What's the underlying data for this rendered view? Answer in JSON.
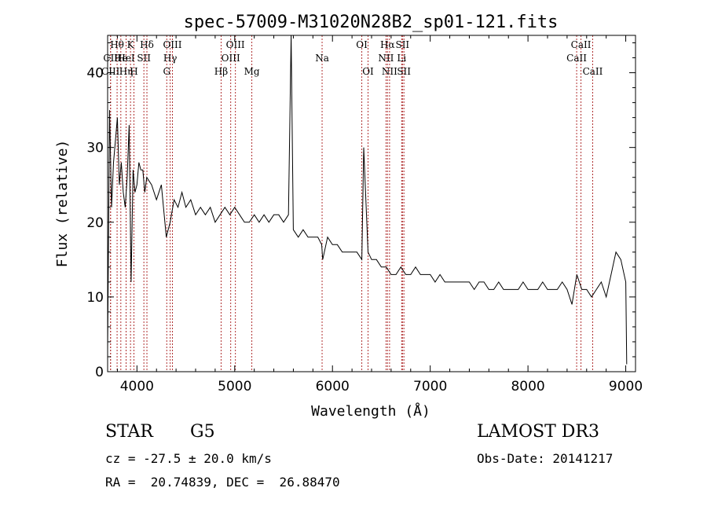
{
  "chart_data": {
    "type": "line",
    "title": "spec-57009-M31020N28B2_sp01-121.fits",
    "xlabel": "Wavelength (Å)",
    "ylabel": "Flux (relative)",
    "xlim": [
      3700,
      9100
    ],
    "ylim": [
      0,
      45
    ],
    "xticks": [
      4000,
      5000,
      6000,
      7000,
      8000,
      9000
    ],
    "yticks": [
      0,
      10,
      20,
      30,
      40
    ],
    "grid": false,
    "series": [
      {
        "values_x": [
          3700,
          3720,
          3740,
          3760,
          3780,
          3800,
          3820,
          3840,
          3860,
          3880,
          3900,
          3920,
          3940,
          3960,
          3980,
          4000,
          4020,
          4040,
          4060,
          4080,
          4100,
          4150,
          4200,
          4250,
          4300,
          4340,
          4380,
          4420,
          4460,
          4500,
          4550,
          4600,
          4650,
          4700,
          4750,
          4800,
          4850,
          4900,
          4950,
          5000,
          5050,
          5100,
          5150,
          5200,
          5250,
          5300,
          5350,
          5400,
          5450,
          5500,
          5550,
          5577,
          5600,
          5650,
          5700,
          5750,
          5800,
          5850,
          5890,
          5900,
          5950,
          6000,
          6050,
          6100,
          6150,
          6200,
          6250,
          6300,
          6320,
          6364,
          6400,
          6450,
          6500,
          6550,
          6600,
          6650,
          6700,
          6750,
          6800,
          6850,
          6900,
          6950,
          7000,
          7050,
          7100,
          7150,
          7200,
          7250,
          7300,
          7350,
          7400,
          7450,
          7500,
          7550,
          7600,
          7650,
          7700,
          7750,
          7800,
          7850,
          7900,
          7950,
          8000,
          8050,
          8100,
          8150,
          8200,
          8250,
          8300,
          8350,
          8400,
          8450,
          8500,
          8550,
          8600,
          8650,
          8700,
          8750,
          8800,
          8850,
          8900,
          8950,
          9000,
          9010
        ],
        "values_y": [
          3,
          35,
          22,
          28,
          31,
          34,
          25,
          28,
          24,
          22,
          26,
          33,
          12,
          27,
          24,
          25,
          28,
          27,
          27,
          24,
          26,
          25,
          23,
          25,
          18,
          20,
          23,
          22,
          24,
          22,
          23,
          21,
          22,
          21,
          22,
          20,
          21,
          22,
          21,
          22,
          21,
          20,
          20,
          21,
          20,
          21,
          20,
          21,
          21,
          20,
          21,
          45,
          19,
          18,
          19,
          18,
          18,
          18,
          17,
          15,
          18,
          17,
          17,
          16,
          16,
          16,
          16,
          15,
          30,
          16,
          15,
          15,
          14,
          14,
          13,
          13,
          14,
          13,
          13,
          14,
          13,
          13,
          13,
          12,
          13,
          12,
          12,
          12,
          12,
          12,
          12,
          11,
          12,
          12,
          11,
          11,
          12,
          11,
          11,
          11,
          11,
          12,
          11,
          11,
          11,
          12,
          11,
          11,
          11,
          12,
          11,
          9,
          13,
          11,
          11,
          10,
          11,
          12,
          10,
          13,
          16,
          15,
          12,
          1
        ]
      }
    ],
    "lines": [
      {
        "label": "Hθ",
        "x": 3797,
        "row": 0
      },
      {
        "label": "CII",
        "x": 3730,
        "row": 1
      },
      {
        "label": "CIII",
        "x": 3730,
        "row": 2
      },
      {
        "label": "He",
        "x": 3835,
        "row": 1
      },
      {
        "label": "Hη",
        "x": 3889,
        "row": 2
      },
      {
        "label": "K",
        "x": 3934,
        "row": 0
      },
      {
        "label": "HeI",
        "x": 3889,
        "row": 1
      },
      {
        "label": "SII",
        "x": 4071,
        "row": 1
      },
      {
        "label": "H",
        "x": 3969,
        "row": 2
      },
      {
        "label": "Hδ",
        "x": 4102,
        "row": 0
      },
      {
        "label": "OIII",
        "x": 4363,
        "row": 0
      },
      {
        "label": "Hγ",
        "x": 4340,
        "row": 1
      },
      {
        "label": "G",
        "x": 4305,
        "row": 2
      },
      {
        "label": "Hβ",
        "x": 4861,
        "row": 2
      },
      {
        "label": "OIII",
        "x": 5007,
        "row": 0
      },
      {
        "label": "OIII",
        "x": 4959,
        "row": 1
      },
      {
        "label": "Mg",
        "x": 5175,
        "row": 2
      },
      {
        "label": "Na",
        "x": 5894,
        "row": 1
      },
      {
        "label": "OI",
        "x": 6300,
        "row": 0
      },
      {
        "label": "OI",
        "x": 6364,
        "row": 2
      },
      {
        "label": "Hα",
        "x": 6563,
        "row": 0
      },
      {
        "label": "SII",
        "x": 6716,
        "row": 0
      },
      {
        "label": "NII",
        "x": 6548,
        "row": 1
      },
      {
        "label": "Li",
        "x": 6708,
        "row": 1
      },
      {
        "label": "NII",
        "x": 6584,
        "row": 2
      },
      {
        "label": "SII",
        "x": 6731,
        "row": 2
      },
      {
        "label": "CaII",
        "x": 8542,
        "row": 0
      },
      {
        "label": "CaII",
        "x": 8498,
        "row": 1
      },
      {
        "label": "CaII",
        "x": 8662,
        "row": 2
      }
    ]
  },
  "footer": {
    "class_label": "STAR",
    "subclass": "G5",
    "survey": "LAMOST DR3",
    "cz": "cz = -27.5 ± 20.0 km/s",
    "obs_date": "Obs-Date: 20141217",
    "coords": "RA =  20.74839, DEC =  26.88470"
  }
}
